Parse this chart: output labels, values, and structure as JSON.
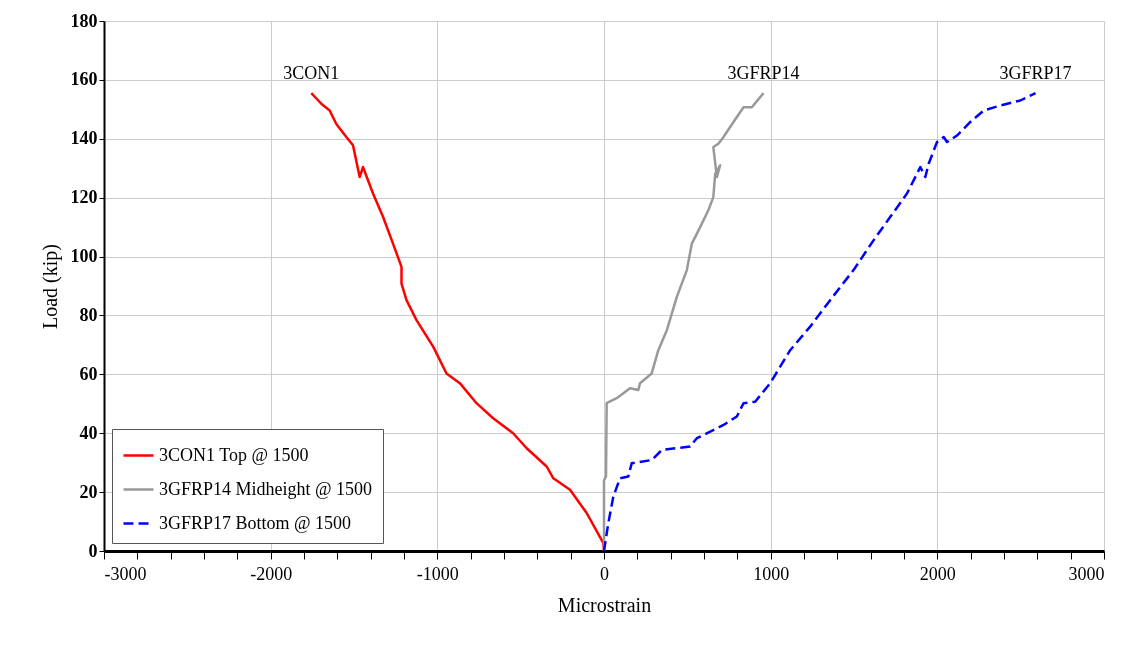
{
  "chart_data": {
    "type": "line",
    "xlabel": "Microstrain",
    "ylabel": "Load (kip)",
    "xlim": [
      -3000,
      3000
    ],
    "ylim": [
      0,
      180
    ],
    "xticks": [
      -3000,
      {
        "value": -2800,
        "label": null
      },
      {
        "value": -2600,
        "label": null
      },
      {
        "value": -2400,
        "label": null
      },
      {
        "value": -2200,
        "label": null
      },
      -2000,
      {
        "value": -1800,
        "label": null
      },
      {
        "value": -1600,
        "label": null
      },
      {
        "value": -1400,
        "label": null
      },
      {
        "value": -1200,
        "label": null
      },
      -1000,
      {
        "value": -800,
        "label": null
      },
      {
        "value": -600,
        "label": null
      },
      {
        "value": -400,
        "label": null
      },
      {
        "value": -200,
        "label": null
      },
      0,
      {
        "value": 200,
        "label": null
      },
      {
        "value": 400,
        "label": null
      },
      {
        "value": 600,
        "label": null
      },
      {
        "value": 800,
        "label": null
      },
      1000,
      {
        "value": 1200,
        "label": null
      },
      {
        "value": 1400,
        "label": null
      },
      {
        "value": 1600,
        "label": null
      },
      {
        "value": 1800,
        "label": null
      },
      2000,
      {
        "value": 2200,
        "label": null
      },
      {
        "value": 2400,
        "label": null
      },
      {
        "value": 2600,
        "label": null
      },
      {
        "value": 2800,
        "label": null
      },
      3000
    ],
    "yticks": [
      0,
      20,
      40,
      60,
      80,
      100,
      120,
      140,
      160,
      180
    ],
    "grid": true,
    "legend": "bottom left",
    "marker": "none",
    "series": [
      {
        "name": "3CON1 Top @ 1500",
        "color": "#ff0000",
        "line_style": "solid",
        "x": [
          -1756,
          -1696,
          -1646,
          -1606,
          -1546,
          -1506,
          -1466,
          -1446,
          -1386,
          -1326,
          -1266,
          -1215,
          -1215,
          -1185,
          -1125,
          -1025,
          -945,
          -865,
          -765,
          -665,
          -545,
          -464,
          -344,
          -304,
          -204,
          -104,
          -4,
          0
        ],
        "values": [
          155.5,
          151.9,
          149.6,
          145,
          140.6,
          137.8,
          127,
          130.4,
          121.4,
          113.5,
          104.4,
          96.5,
          90.8,
          85.2,
          78.4,
          69.4,
          60.3,
          57,
          50.2,
          45.1,
          40,
          34.9,
          28.7,
          24.7,
          20.8,
          12.9,
          2.7,
          0
        ]
      },
      {
        "name": "3GFRP14 Midheight @ 1500",
        "color": "#999999",
        "line_style": "solid",
        "x": [
          0,
          0,
          12,
          16,
          76,
          156,
          206,
          216,
          286,
          326,
          377,
          437,
          497,
          527,
          577,
          626,
          656,
          667,
          697,
          677,
          656,
          686,
          717,
          777,
          837,
          887,
          957
        ],
        "values": [
          0,
          24,
          25.3,
          50.2,
          51.9,
          55.3,
          54.7,
          57,
          60.3,
          68.2,
          75,
          86.3,
          95.4,
          104.4,
          110,
          115.7,
          120.2,
          128.1,
          131,
          127,
          137.2,
          138.3,
          140.6,
          145.7,
          150.7,
          150.7,
          155.5
        ]
      },
      {
        "name": "3GFRP17 Bottom @ 1500",
        "color": "#0000ff",
        "line_style": "dashed",
        "x": [
          0,
          26,
          56,
          96,
          146,
          166,
          286,
          347,
          517,
          557,
          717,
          797,
          837,
          907,
          997,
          1117,
          1237,
          1357,
          1497,
          1617,
          1718,
          1818,
          1898,
          1928,
          1948,
          1998,
          2038,
          2058,
          2118,
          2198,
          2278,
          2378,
          2498,
          2589
        ],
        "values": [
          0,
          9.5,
          18.5,
          24.7,
          25.3,
          29.8,
          30.9,
          34.3,
          35.5,
          38.3,
          42.8,
          45.7,
          50.2,
          50.7,
          57,
          68.2,
          76.2,
          85.2,
          95.4,
          105.5,
          113.5,
          121.4,
          130.4,
          127,
          131.5,
          138.9,
          140.6,
          138.9,
          141.1,
          145.7,
          149.6,
          151.3,
          153,
          155.5
        ]
      }
    ],
    "annotations": [
      "3CON1",
      "3GFRP14",
      "3GFRP17"
    ]
  }
}
